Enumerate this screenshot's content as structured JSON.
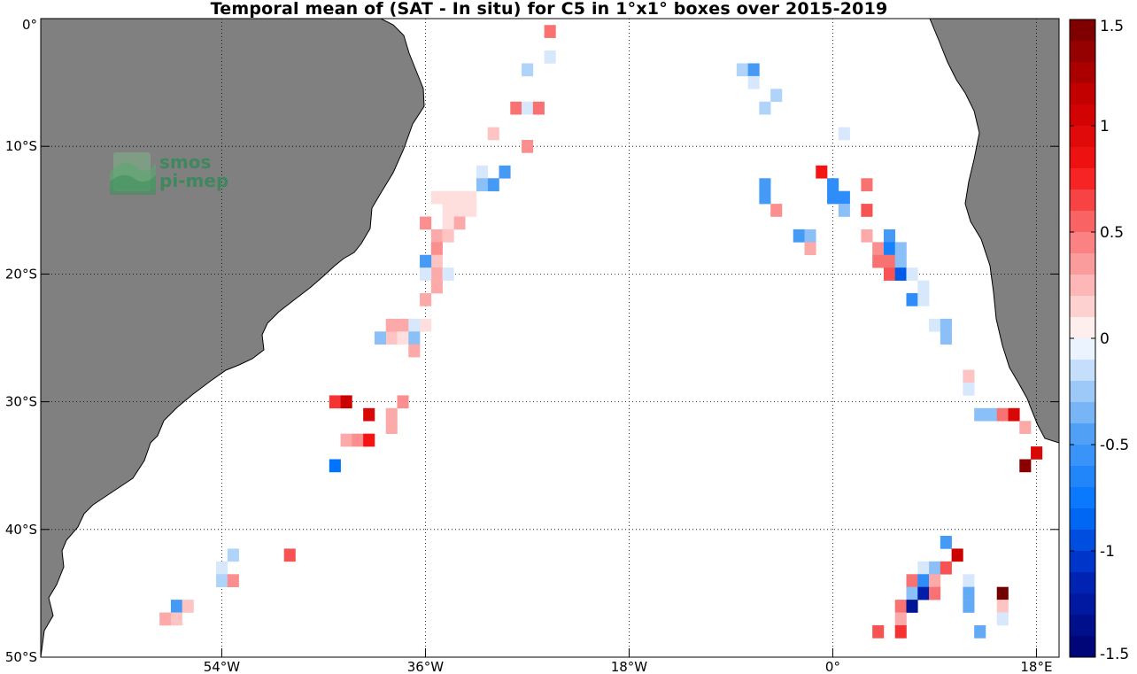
{
  "title": "Temporal mean of (SAT - In situ) for C5 in 1°x1° boxes over 2015-2019",
  "map": {
    "lon_range": [
      -70,
      20
    ],
    "lat_range": [
      -50,
      0
    ],
    "gridlines": "dotted",
    "land_color": "#808080",
    "ocean_color": "#ffffff",
    "lat_ticks": [
      {
        "lat": 0,
        "label": "0°"
      },
      {
        "lat": -10,
        "label": "10°S"
      },
      {
        "lat": -20,
        "label": "20°S"
      },
      {
        "lat": -30,
        "label": "30°S"
      },
      {
        "lat": -40,
        "label": "40°S"
      },
      {
        "lat": -50,
        "label": "50°S"
      }
    ],
    "lon_ticks": [
      {
        "lon": -54,
        "label": "54°W"
      },
      {
        "lon": -36,
        "label": "36°W"
      },
      {
        "lon": -18,
        "label": "18°W"
      },
      {
        "lon": 0,
        "label": "0°"
      },
      {
        "lon": 18,
        "label": "18°E"
      }
    ],
    "logo": {
      "line1": "smos",
      "line2": "pi-mep"
    }
  },
  "colorbar": {
    "min": -1.5,
    "max": 1.5,
    "ticks": [
      {
        "value": 1.5,
        "label": "1.5"
      },
      {
        "value": 1,
        "label": "1"
      },
      {
        "value": 0.5,
        "label": "0.5"
      },
      {
        "value": 0,
        "label": "0"
      },
      {
        "value": -0.5,
        "label": "-0.5"
      },
      {
        "value": -1,
        "label": "-1"
      },
      {
        "value": -1.5,
        "label": "-1.5"
      }
    ]
  },
  "chart_data": {
    "type": "heatmap",
    "title": "Temporal mean of (SAT - In situ) for C5 in 1°x1° boxes over 2015-2019",
    "x_unit": "longitude (deg)",
    "y_unit": "latitude (deg)",
    "xlim": [
      -70,
      20
    ],
    "ylim": [
      -50,
      0
    ],
    "cell_size_deg": 1,
    "colorbar_range": [
      -1.5,
      1.5
    ],
    "cells": [
      [
        -25,
        -1,
        0.5
      ],
      [
        -25,
        -3,
        -0.1
      ],
      [
        -27,
        -4,
        -0.2
      ],
      [
        -28,
        -7,
        0.5
      ],
      [
        -27,
        -7,
        -0.1
      ],
      [
        -26,
        -7,
        0.5
      ],
      [
        -30,
        -9,
        0.2
      ],
      [
        -27,
        -10,
        0.4
      ],
      [
        -31,
        -12,
        -0.1
      ],
      [
        -29,
        -12,
        -0.5
      ],
      [
        -30,
        -13,
        -0.5
      ],
      [
        -31,
        -13,
        -0.3
      ],
      [
        -32,
        -14,
        0.1
      ],
      [
        -33,
        -14,
        0.1
      ],
      [
        -34,
        -14,
        0.1
      ],
      [
        -35,
        -14,
        0.1
      ],
      [
        -32,
        -15,
        0.1
      ],
      [
        -33,
        -15,
        0.1
      ],
      [
        -34,
        -15,
        0.1
      ],
      [
        -33,
        -16,
        0.3
      ],
      [
        -36,
        -16,
        0.4
      ],
      [
        -34,
        -16,
        0.1
      ],
      [
        -35,
        -17,
        0.3
      ],
      [
        -34,
        -17,
        0.2
      ],
      [
        -35,
        -18,
        0.4
      ],
      [
        -35,
        -19,
        0.2
      ],
      [
        -36,
        -19,
        -0.5
      ],
      [
        -35,
        -20,
        0.3
      ],
      [
        -34,
        -20,
        -0.1
      ],
      [
        -36,
        -20,
        -0.1
      ],
      [
        -35,
        -21,
        0.3
      ],
      [
        -36,
        -22,
        0.3
      ],
      [
        -36,
        -24,
        0.1
      ],
      [
        -38,
        -24,
        0.3
      ],
      [
        -37,
        -24,
        -0.1
      ],
      [
        -39,
        -25,
        0.2
      ],
      [
        -38,
        -25,
        0.1
      ],
      [
        -40,
        -25,
        -0.3
      ],
      [
        -37,
        -25,
        -0.3
      ],
      [
        -39,
        -24,
        0.3
      ],
      [
        -37,
        -26,
        0.3
      ],
      [
        -44,
        -30,
        0.7
      ],
      [
        -43,
        -30,
        1.1
      ],
      [
        -38,
        -30,
        0.4
      ],
      [
        -41,
        -31,
        1.0
      ],
      [
        -39,
        -31,
        0.3
      ],
      [
        -39,
        -32,
        0.3
      ],
      [
        -43,
        -33,
        0.3
      ],
      [
        -42,
        -33,
        0.4
      ],
      [
        -41,
        -33,
        0.8
      ],
      [
        -44,
        -35,
        -0.8
      ],
      [
        -48,
        -42,
        0.6
      ],
      [
        -53,
        -42,
        -0.2
      ],
      [
        -54,
        -43,
        -0.1
      ],
      [
        -54,
        -44,
        -0.2
      ],
      [
        -53,
        -44,
        0.4
      ],
      [
        -58,
        -46,
        -0.5
      ],
      [
        -57,
        -46,
        0.2
      ],
      [
        -59,
        -47,
        0.3
      ],
      [
        -58,
        -47,
        0.2
      ],
      [
        -8,
        -4,
        -0.2
      ],
      [
        -7,
        -4,
        -0.5
      ],
      [
        -7,
        -5,
        -0.1
      ],
      [
        -5,
        -6,
        -0.2
      ],
      [
        -6,
        -7,
        -0.2
      ],
      [
        1,
        -9,
        -0.1
      ],
      [
        -1,
        -12,
        0.8
      ],
      [
        -6,
        -13,
        -0.5
      ],
      [
        0,
        -13,
        -0.6
      ],
      [
        3,
        -13,
        0.5
      ],
      [
        -6,
        -14,
        -0.5
      ],
      [
        0,
        -14,
        -0.6
      ],
      [
        1,
        -14,
        -0.6
      ],
      [
        -5,
        -15,
        0.4
      ],
      [
        1,
        -15,
        -0.3
      ],
      [
        3,
        -15,
        0.6
      ],
      [
        -3,
        -17,
        -0.5
      ],
      [
        -2,
        -17,
        -0.3
      ],
      [
        3,
        -17,
        0.3
      ],
      [
        5,
        -17,
        -0.5
      ],
      [
        -2,
        -18,
        0.3
      ],
      [
        4,
        -18,
        0.4
      ],
      [
        5,
        -18,
        -0.7
      ],
      [
        6,
        -18,
        -0.3
      ],
      [
        4,
        -19,
        0.5
      ],
      [
        5,
        -19,
        0.5
      ],
      [
        6,
        -19,
        -0.3
      ],
      [
        5,
        -20,
        0.6
      ],
      [
        6,
        -20,
        -0.9
      ],
      [
        7,
        -20,
        -0.1
      ],
      [
        8,
        -21,
        -0.1
      ],
      [
        7,
        -22,
        -0.6
      ],
      [
        8,
        -22,
        -0.1
      ],
      [
        9,
        -24,
        -0.1
      ],
      [
        10,
        -24,
        -0.3
      ],
      [
        10,
        -25,
        -0.3
      ],
      [
        12,
        -28,
        0.2
      ],
      [
        12,
        -29,
        -0.1
      ],
      [
        13,
        -31,
        -0.3
      ],
      [
        14,
        -31,
        -0.3
      ],
      [
        15,
        -31,
        0.5
      ],
      [
        16,
        -31,
        1.0
      ],
      [
        17,
        -32,
        0.3
      ],
      [
        18,
        -34,
        1.0
      ],
      [
        17,
        -35,
        1.4
      ],
      [
        10,
        -41,
        -0.5
      ],
      [
        11,
        -42,
        1.1
      ],
      [
        8,
        -43,
        -0.1
      ],
      [
        9,
        -43,
        -0.3
      ],
      [
        10,
        -43,
        0.6
      ],
      [
        7,
        -44,
        0.5
      ],
      [
        8,
        -44,
        -0.6
      ],
      [
        9,
        -44,
        0.3
      ],
      [
        12,
        -44,
        -0.1
      ],
      [
        7,
        -45,
        -0.3
      ],
      [
        8,
        -45,
        -1.2
      ],
      [
        9,
        -45,
        0.5
      ],
      [
        12,
        -45,
        -0.4
      ],
      [
        15,
        -45,
        1.5
      ],
      [
        6,
        -46,
        0.5
      ],
      [
        7,
        -46,
        -1.3
      ],
      [
        12,
        -46,
        -0.4
      ],
      [
        15,
        -46,
        0.2
      ],
      [
        6,
        -47,
        0.3
      ],
      [
        15,
        -47,
        -0.1
      ],
      [
        4,
        -48,
        0.6
      ],
      [
        6,
        -48,
        0.7
      ],
      [
        13,
        -48,
        -0.4
      ]
    ]
  }
}
